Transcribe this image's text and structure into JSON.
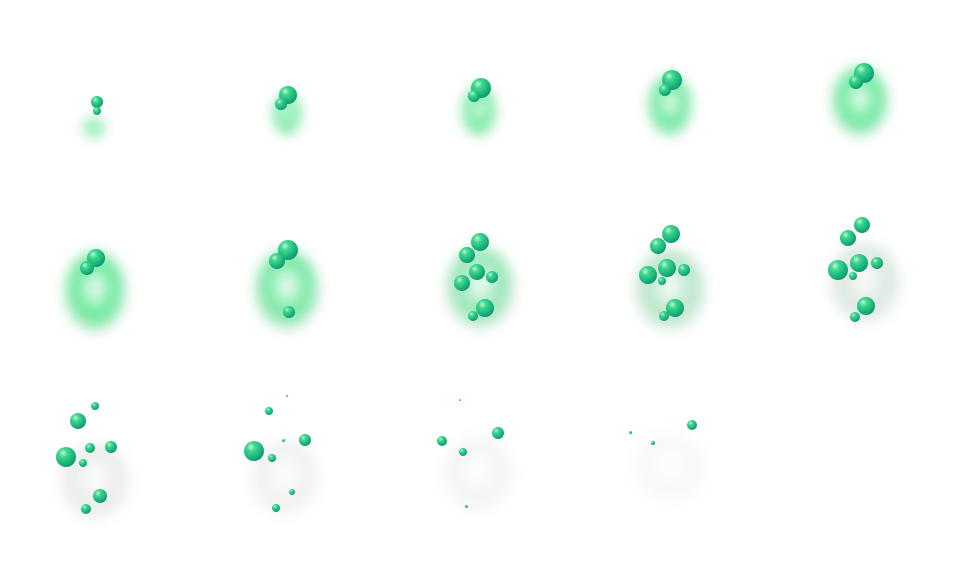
{
  "sprite_sheet": {
    "frame_count": 14,
    "columns": 5,
    "rows": 3,
    "colors": {
      "background": "#ffffff",
      "smoke_green": "#5fe894",
      "smoke_gray": "#d8dcd9",
      "bubble_light": "#3fd88e",
      "bubble_mid": "#1bb47c",
      "bubble_dark": "#0c6f66"
    },
    "smoke_greenness": [
      1,
      1,
      1,
      1,
      1,
      1,
      0.9,
      0.65,
      0.4,
      0.1,
      0,
      0,
      0,
      0
    ],
    "smoke_opacity": [
      1,
      1,
      1,
      1,
      1,
      1,
      1,
      0.95,
      0.85,
      0.7,
      0.55,
      0.4,
      0.3,
      0.2
    ]
  }
}
